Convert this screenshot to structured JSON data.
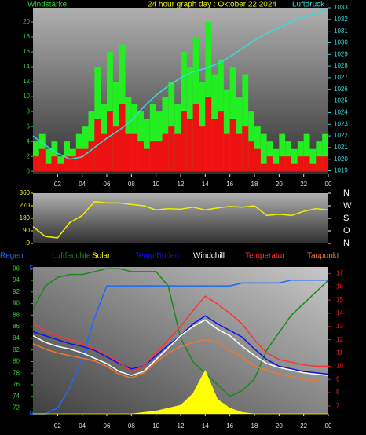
{
  "chart_data": [
    {
      "type": "bar",
      "title": "24 hour graph day : Oktober 22 2024",
      "ylabel": "Windstärke",
      "y2label": "Luftdruck",
      "xlim": [
        0,
        24
      ],
      "xticks": [
        {
          "value": 2,
          "label": "02"
        },
        {
          "value": 4,
          "label": "04"
        },
        {
          "value": 6,
          "label": "06"
        },
        {
          "value": 8,
          "label": "08"
        },
        10,
        12,
        14,
        16,
        18,
        20,
        22,
        {
          "value": 24,
          "label": "00"
        }
      ],
      "ylim": [
        -0.4,
        21.9
      ],
      "yticks": [
        0,
        2,
        4,
        6,
        8,
        10,
        12,
        14,
        16,
        18,
        20
      ],
      "ycolor": "#33cc33",
      "y2lim": [
        1018.7,
        1033
      ],
      "y2ticks": [
        1019,
        1020,
        1021,
        1022,
        1023,
        1024,
        1025,
        1026,
        1027,
        1028,
        1029,
        1030,
        1031,
        1032,
        1033
      ],
      "y2color": "#33dddd",
      "series": [
        {
          "type": "bar",
          "color": "#22ee22",
          "x": [
            0.25,
            0.75,
            1.25,
            1.75,
            2.25,
            2.75,
            3.25,
            3.75,
            4.25,
            4.75,
            5.25,
            5.75,
            6.25,
            6.75,
            7.25,
            7.75,
            8.25,
            8.75,
            9.25,
            9.75,
            10.25,
            10.75,
            11.25,
            11.75,
            12.25,
            12.75,
            13.25,
            13.75,
            14.25,
            14.75,
            15.25,
            15.75,
            16.25,
            16.75,
            17.25,
            17.75,
            18.25,
            18.75,
            19.25,
            19.75,
            20.25,
            20.75,
            21.25,
            21.75,
            22.25,
            22.75,
            23.25,
            23.75
          ],
          "values": [
            4,
            5,
            3,
            4,
            2,
            4,
            3,
            5,
            6,
            8,
            14,
            9,
            16,
            12,
            17,
            10,
            9,
            8,
            7,
            9,
            8,
            10,
            12,
            9,
            16,
            14,
            18,
            12,
            20,
            13,
            15,
            11,
            14,
            10,
            13,
            8,
            6,
            5,
            4,
            3,
            5,
            4,
            3,
            4,
            5,
            3,
            4,
            5
          ]
        },
        {
          "type": "bar",
          "color": "#ee1111",
          "x": [
            0.25,
            0.75,
            1.25,
            1.75,
            2.25,
            2.75,
            3.25,
            3.75,
            4.25,
            4.75,
            5.25,
            5.75,
            6.25,
            6.75,
            7.25,
            7.75,
            8.25,
            8.75,
            9.25,
            9.75,
            10.25,
            10.75,
            11.25,
            11.75,
            12.25,
            12.75,
            13.25,
            13.75,
            14.25,
            14.75,
            15.25,
            15.75,
            16.25,
            16.75,
            17.25,
            17.75,
            18.25,
            18.75,
            19.25,
            19.75,
            20.25,
            20.75,
            21.25,
            21.75,
            22.25,
            22.75,
            23.25,
            23.75
          ],
          "values": [
            2,
            3,
            1,
            2,
            1,
            2,
            2,
            3,
            3,
            4,
            7,
            5,
            8,
            6,
            9,
            5,
            5,
            4,
            3,
            4,
            4,
            5,
            6,
            5,
            8,
            7,
            9,
            6,
            10,
            7,
            8,
            5,
            7,
            5,
            6,
            4,
            3,
            1,
            2,
            1,
            2,
            2,
            1,
            2,
            2,
            1,
            2,
            2
          ]
        },
        {
          "type": "line",
          "axis": "y2",
          "color": "#33dddd",
          "x": [
            0,
            1,
            2,
            3,
            4,
            5,
            6,
            7,
            8,
            9,
            10,
            11,
            12,
            13,
            14,
            15,
            16,
            17,
            18,
            19,
            20,
            21,
            22,
            23,
            24
          ],
          "values": [
            1022,
            1021.2,
            1020.5,
            1020,
            1020.2,
            1021,
            1021.8,
            1022.5,
            1023.3,
            1024.5,
            1025.5,
            1026.3,
            1027,
            1027.5,
            1027.8,
            1028.2,
            1028.8,
            1029.5,
            1030.2,
            1030.8,
            1031.3,
            1031.8,
            1032.2,
            1032.5,
            1032.9
          ]
        }
      ]
    },
    {
      "type": "line",
      "xlim": [
        0,
        24
      ],
      "ylim": [
        0,
        360
      ],
      "yticks": [
        0,
        90,
        180,
        270,
        360
      ],
      "ycolor": "#ffff00",
      "y2lim": [
        0,
        360
      ],
      "y2ticks": [
        {
          "value": 360,
          "label": "N"
        },
        {
          "value": 270,
          "label": "W"
        },
        {
          "value": 180,
          "label": "S"
        },
        {
          "value": 90,
          "label": "O"
        },
        {
          "value": 0,
          "label": "N"
        }
      ],
      "y2color": "#ffffff",
      "series": [
        {
          "type": "line",
          "color": "#eeee00",
          "x": [
            0,
            1,
            2,
            3,
            4,
            5,
            6,
            7,
            8,
            9,
            10,
            11,
            12,
            13,
            14,
            15,
            16,
            17,
            18,
            19,
            20,
            21,
            22,
            23,
            24
          ],
          "values": [
            120,
            50,
            40,
            150,
            200,
            300,
            290,
            290,
            280,
            270,
            240,
            250,
            245,
            260,
            240,
            255,
            265,
            260,
            270,
            200,
            210,
            200,
            230,
            250,
            240
          ]
        }
      ]
    },
    {
      "type": "line",
      "xlim": [
        0,
        24
      ],
      "xticks": [
        {
          "value": 2,
          "label": "02"
        },
        {
          "value": 4,
          "label": "04"
        },
        {
          "value": 6,
          "label": "06"
        },
        {
          "value": 8,
          "label": "08"
        },
        10,
        12,
        14,
        16,
        18,
        20,
        22,
        {
          "value": 24,
          "label": "00"
        }
      ],
      "ylim": [
        71,
        96.3
      ],
      "yticks": [
        72,
        74,
        76,
        78,
        80,
        82,
        84,
        86,
        88,
        90,
        92,
        94,
        96
      ],
      "ycolor": "#33cc33",
      "y2lim": [
        6.4,
        17.5
      ],
      "y2ticks": [
        7,
        8,
        9,
        10,
        11,
        12,
        13,
        14,
        15,
        16,
        17
      ],
      "y2color": "#ee2222",
      "y3lim": [
        0,
        5.05
      ],
      "y3ticks": [
        0,
        5
      ],
      "y3color": "#2266ff",
      "series": [
        {
          "name": "Regen",
          "type": "line",
          "axis": "y3",
          "color": "#1a6aff",
          "x": [
            0,
            1,
            2,
            3,
            4,
            5,
            6,
            7,
            8,
            9,
            10,
            11,
            12,
            13,
            14,
            15,
            16,
            17,
            18,
            19,
            20,
            21,
            22,
            23,
            24
          ],
          "values": [
            0,
            0,
            0.2,
            0.9,
            1.9,
            3.3,
            4.4,
            4.4,
            4.4,
            4.4,
            4.4,
            4.4,
            4.4,
            4.4,
            4.4,
            4.4,
            4.4,
            4.5,
            4.5,
            4.5,
            4.5,
            4.6,
            4.6,
            4.6,
            4.6
          ]
        },
        {
          "name": "Luftfeuchte",
          "type": "line",
          "color": "#1a8a1a",
          "x": [
            0,
            1,
            2,
            3,
            4,
            5,
            6,
            7,
            8,
            9,
            10,
            11,
            12,
            13,
            14,
            15,
            16,
            17,
            18,
            19,
            20,
            21,
            22,
            23,
            24
          ],
          "values": [
            89,
            93,
            94.5,
            95,
            95,
            95.5,
            96,
            96,
            95.5,
            95.5,
            95.5,
            93,
            84,
            80,
            78,
            76,
            74,
            75,
            77,
            82,
            85,
            88,
            90,
            92,
            94
          ]
        },
        {
          "name": "Solar",
          "type": "area",
          "axis": "y3",
          "color": "#ffff00",
          "x": [
            0,
            8,
            9,
            10,
            11,
            12,
            13,
            14,
            15,
            16,
            17,
            18,
            24
          ],
          "values": [
            0,
            0,
            0.05,
            0.1,
            0.2,
            0.3,
            0.7,
            1.5,
            0.5,
            0.2,
            0.05,
            0,
            0
          ]
        },
        {
          "name": "Temp Boden",
          "type": "line",
          "color": "#1010ee",
          "x": [
            0,
            1,
            2,
            3,
            4,
            5,
            6,
            7,
            8,
            9,
            10,
            11,
            12,
            13,
            14,
            15,
            16,
            17,
            18,
            19,
            20,
            21,
            22,
            23,
            24
          ],
          "axis": "y2",
          "values": [
            12.6,
            12.3,
            12,
            11.7,
            11.5,
            11.2,
            10.7,
            10.2,
            9.8,
            10,
            10.8,
            11.6,
            12.3,
            13.2,
            13.8,
            13.2,
            12.7,
            12.2,
            11.3,
            10.5,
            10,
            9.8,
            9.6,
            9.5,
            9.4
          ]
        },
        {
          "name": "Windchill",
          "type": "line",
          "color": "#ffffff",
          "x": [
            0,
            1,
            2,
            3,
            4,
            5,
            6,
            7,
            8,
            9,
            10,
            11,
            12,
            13,
            14,
            15,
            16,
            17,
            18,
            19,
            20,
            21,
            22,
            23,
            24
          ],
          "axis": "y2",
          "values": [
            12.3,
            11.8,
            11.5,
            11.3,
            11,
            10.6,
            10.2,
            9.6,
            9.3,
            9.6,
            10.5,
            11.4,
            12.3,
            13,
            13.5,
            12.8,
            12.3,
            11.5,
            10.8,
            10.2,
            9.9,
            9.7,
            9.5,
            9.4,
            9.3
          ]
        },
        {
          "name": "Temperatur",
          "type": "line",
          "color": "#ff3333",
          "x": [
            0,
            1,
            2,
            3,
            4,
            5,
            6,
            7,
            8,
            9,
            10,
            11,
            12,
            13,
            14,
            15,
            16,
            17,
            18,
            19,
            20,
            21,
            22,
            23,
            24
          ],
          "axis": "y2",
          "values": [
            13.2,
            12.7,
            12.3,
            12,
            11.7,
            11.3,
            10.9,
            10.3,
            9.6,
            10,
            11,
            12,
            13,
            14.2,
            15.3,
            14.7,
            14,
            13.2,
            12,
            11,
            10.5,
            10.3,
            10.1,
            10,
            10
          ]
        },
        {
          "name": "Taupunkt",
          "type": "line",
          "color": "#ee7733",
          "x": [
            0,
            1,
            2,
            3,
            4,
            5,
            6,
            7,
            8,
            9,
            10,
            11,
            12,
            13,
            14,
            15,
            16,
            17,
            18,
            19,
            20,
            21,
            22,
            23,
            24
          ],
          "axis": "y2",
          "values": [
            11.7,
            11.3,
            11,
            10.8,
            10.6,
            10.4,
            10,
            9.4,
            9.1,
            9.5,
            10.3,
            11,
            11.5,
            11.8,
            12,
            11.8,
            11.2,
            10.7,
            10,
            9.7,
            9.4,
            9.2,
            9,
            8.9,
            8.8
          ]
        }
      ]
    }
  ]
}
